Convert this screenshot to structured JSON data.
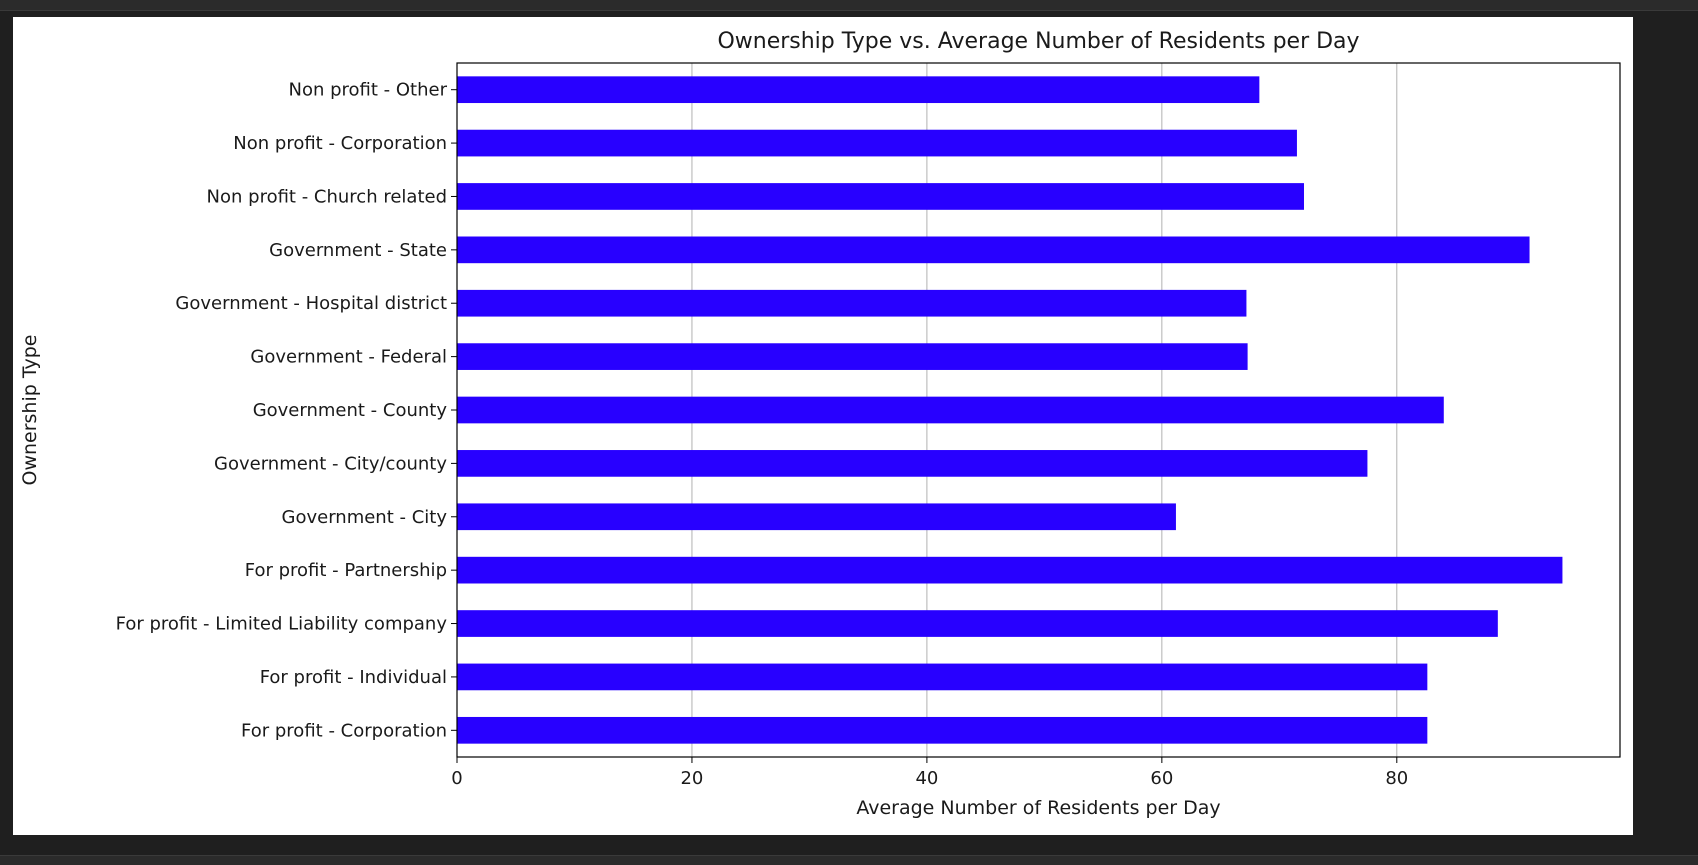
{
  "chart_data": {
    "type": "bar",
    "orientation": "horizontal",
    "title": "Ownership Type vs. Average Number of Residents per Day",
    "xlabel": "Average Number of Residents per Day",
    "ylabel": "Ownership Type",
    "xlim": [
      0,
      99
    ],
    "x_ticks": [
      0,
      20,
      40,
      60,
      80
    ],
    "grid": "x",
    "legend": "none",
    "bar_color": "#2800ff",
    "categories": [
      "For profit - Corporation",
      "For profit - Individual",
      "For profit - Limited Liability company",
      "For profit - Partnership",
      "Government - City",
      "Government - City/county",
      "Government - County",
      "Government - Federal",
      "Government - Hospital district",
      "Government - State",
      "Non profit - Church related",
      "Non profit - Corporation",
      "Non profit - Other"
    ],
    "values": [
      82.6,
      82.6,
      88.6,
      94.1,
      61.2,
      77.5,
      84.0,
      67.3,
      67.2,
      91.3,
      72.1,
      71.5,
      68.3
    ]
  }
}
